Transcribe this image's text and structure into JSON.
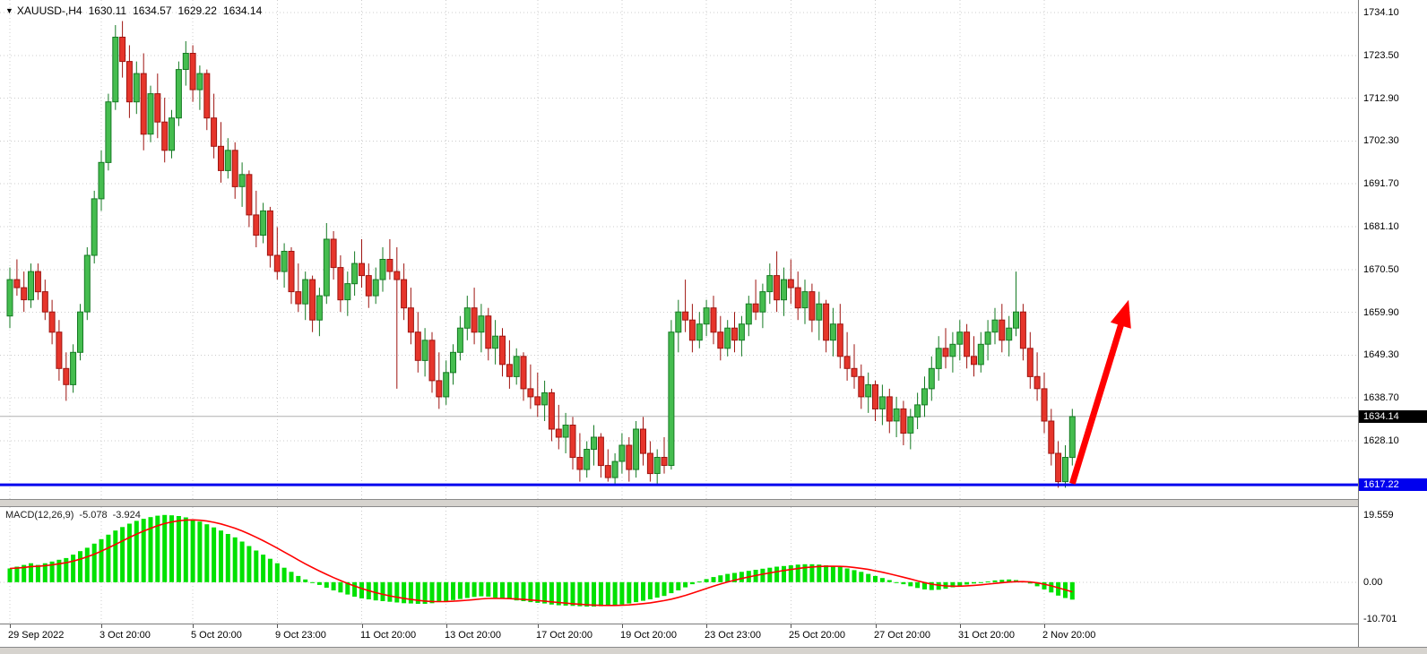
{
  "header": {
    "symbol_period": "XAUUSD-,H4",
    "open": "1630.11",
    "high": "1634.57",
    "low": "1629.22",
    "close": "1634.14"
  },
  "macd_info": {
    "name": "MACD(12,26,9)",
    "macd_value": "-5.078",
    "signal_value": "-3.924"
  },
  "price_axis": {
    "gridlines": [
      "1734.10",
      "1723.50",
      "1712.90",
      "1702.30",
      "1691.70",
      "1681.10",
      "1670.50",
      "1659.90",
      "1649.30",
      "1638.70",
      "1628.10"
    ],
    "current_price": "1634.14",
    "support_price": "1617.22"
  },
  "macd_axis": {
    "labels": [
      {
        "text": "19.559",
        "value": 19.559
      },
      {
        "text": "0.00",
        "value": 0
      },
      {
        "text": "-10.701",
        "value": -10.701
      }
    ]
  },
  "time_axis": {
    "labels": [
      {
        "text": "29 Sep 2022",
        "index": 0
      },
      {
        "text": "3 Oct 20:00",
        "index": 13
      },
      {
        "text": "5 Oct 20:00",
        "index": 26
      },
      {
        "text": "9 Oct 23:00",
        "index": 38
      },
      {
        "text": "11 Oct 20:00",
        "index": 50
      },
      {
        "text": "13 Oct 20:00",
        "index": 62
      },
      {
        "text": "17 Oct 20:00",
        "index": 75
      },
      {
        "text": "19 Oct 20:00",
        "index": 87
      },
      {
        "text": "23 Oct 23:00",
        "index": 99
      },
      {
        "text": "25 Oct 20:00",
        "index": 111
      },
      {
        "text": "27 Oct 20:00",
        "index": 123
      },
      {
        "text": "31 Oct 20:00",
        "index": 135
      },
      {
        "text": "2 Nov 20:00",
        "index": 147
      }
    ]
  },
  "colors": {
    "background": "#ffffff",
    "grid": "#cccccc",
    "bull": "#45bd4f",
    "bull_border": "#157a23",
    "bear": "#e6352b",
    "bear_border": "#9e1410",
    "macd_hist": "#00e100",
    "signal": "#ff0000",
    "support": "#0000ee",
    "arrow": "#ff0000",
    "current_price_line": "#b0b0b0"
  },
  "chart_data": [
    {
      "type": "candlestick",
      "title": "XAUUSD- H4",
      "ylim": [
        1613.7,
        1737.2
      ],
      "current_price": 1634.14,
      "support_price": 1617.22,
      "candles": [
        [
          1659,
          1671,
          1656,
          1668
        ],
        [
          1668,
          1673,
          1664,
          1666
        ],
        [
          1666,
          1670,
          1660,
          1663
        ],
        [
          1663,
          1672,
          1661,
          1670
        ],
        [
          1670,
          1672,
          1663,
          1665
        ],
        [
          1665,
          1668,
          1658,
          1660
        ],
        [
          1660,
          1663,
          1652,
          1655
        ],
        [
          1655,
          1658,
          1643,
          1646
        ],
        [
          1646,
          1650,
          1638,
          1642
        ],
        [
          1642,
          1652,
          1640,
          1650
        ],
        [
          1650,
          1662,
          1648,
          1660
        ],
        [
          1660,
          1676,
          1658,
          1674
        ],
        [
          1674,
          1690,
          1672,
          1688
        ],
        [
          1688,
          1700,
          1685,
          1697
        ],
        [
          1697,
          1714,
          1695,
          1712
        ],
        [
          1712,
          1731,
          1710,
          1728
        ],
        [
          1728,
          1732,
          1718,
          1722
        ],
        [
          1722,
          1726,
          1708,
          1712
        ],
        [
          1712,
          1722,
          1709,
          1719
        ],
        [
          1719,
          1724,
          1700,
          1704
        ],
        [
          1704,
          1716,
          1702,
          1714
        ],
        [
          1714,
          1719,
          1703,
          1707
        ],
        [
          1707,
          1713,
          1697,
          1700
        ],
        [
          1700,
          1710,
          1698,
          1708
        ],
        [
          1708,
          1722,
          1706,
          1720
        ],
        [
          1720,
          1727,
          1716,
          1724
        ],
        [
          1724,
          1726,
          1712,
          1715
        ],
        [
          1715,
          1721,
          1710,
          1719
        ],
        [
          1719,
          1720,
          1705,
          1708
        ],
        [
          1708,
          1714,
          1698,
          1701
        ],
        [
          1701,
          1707,
          1692,
          1695
        ],
        [
          1695,
          1703,
          1693,
          1700
        ],
        [
          1700,
          1702,
          1688,
          1691
        ],
        [
          1691,
          1697,
          1686,
          1694
        ],
        [
          1694,
          1695,
          1681,
          1684
        ],
        [
          1684,
          1690,
          1676,
          1679
        ],
        [
          1679,
          1687,
          1677,
          1685
        ],
        [
          1685,
          1686,
          1671,
          1674
        ],
        [
          1674,
          1681,
          1668,
          1670
        ],
        [
          1670,
          1677,
          1666,
          1675
        ],
        [
          1675,
          1676,
          1662,
          1665
        ],
        [
          1665,
          1672,
          1660,
          1662
        ],
        [
          1662,
          1670,
          1658,
          1668
        ],
        [
          1668,
          1669,
          1655,
          1658
        ],
        [
          1658,
          1666,
          1654,
          1664
        ],
        [
          1664,
          1682,
          1662,
          1678
        ],
        [
          1678,
          1680,
          1668,
          1671
        ],
        [
          1671,
          1674,
          1660,
          1663
        ],
        [
          1663,
          1670,
          1659,
          1667
        ],
        [
          1667,
          1675,
          1664,
          1672
        ],
        [
          1672,
          1678,
          1666,
          1669
        ],
        [
          1669,
          1672,
          1661,
          1664
        ],
        [
          1664,
          1671,
          1662,
          1668
        ],
        [
          1668,
          1676,
          1665,
          1673
        ],
        [
          1673,
          1678,
          1668,
          1670
        ],
        [
          1670,
          1676,
          1641,
          1668
        ],
        [
          1668,
          1672,
          1658,
          1661
        ],
        [
          1661,
          1666,
          1652,
          1655
        ],
        [
          1655,
          1660,
          1645,
          1648
        ],
        [
          1648,
          1656,
          1644,
          1653
        ],
        [
          1653,
          1655,
          1640,
          1643
        ],
        [
          1643,
          1650,
          1636,
          1639
        ],
        [
          1639,
          1648,
          1637,
          1645
        ],
        [
          1645,
          1652,
          1642,
          1650
        ],
        [
          1650,
          1659,
          1648,
          1656
        ],
        [
          1656,
          1664,
          1653,
          1661
        ],
        [
          1661,
          1666,
          1652,
          1655
        ],
        [
          1655,
          1662,
          1650,
          1659
        ],
        [
          1659,
          1661,
          1648,
          1651
        ],
        [
          1651,
          1658,
          1647,
          1654
        ],
        [
          1654,
          1656,
          1644,
          1647
        ],
        [
          1647,
          1653,
          1641,
          1644
        ],
        [
          1644,
          1651,
          1642,
          1649
        ],
        [
          1649,
          1650,
          1638,
          1641
        ],
        [
          1641,
          1647,
          1636,
          1639
        ],
        [
          1639,
          1645,
          1634,
          1637
        ],
        [
          1637,
          1643,
          1633,
          1640
        ],
        [
          1640,
          1641,
          1628,
          1631
        ],
        [
          1631,
          1637,
          1626,
          1629
        ],
        [
          1629,
          1635,
          1625,
          1632
        ],
        [
          1632,
          1634,
          1621,
          1624
        ],
        [
          1624,
          1630,
          1618,
          1621
        ],
        [
          1621,
          1628,
          1619,
          1626
        ],
        [
          1626,
          1632,
          1622,
          1629
        ],
        [
          1629,
          1630,
          1619,
          1622
        ],
        [
          1622,
          1626,
          1618,
          1619
        ],
        [
          1619,
          1625,
          1617.5,
          1623
        ],
        [
          1623,
          1630,
          1620,
          1627
        ],
        [
          1627,
          1629,
          1618,
          1621
        ],
        [
          1621,
          1633,
          1619,
          1631
        ],
        [
          1631,
          1634,
          1622,
          1625
        ],
        [
          1625,
          1628,
          1618,
          1620
        ],
        [
          1620,
          1626,
          1617.5,
          1624
        ],
        [
          1624,
          1629,
          1620,
          1622
        ],
        [
          1622,
          1658,
          1621,
          1655
        ],
        [
          1655,
          1663,
          1650,
          1660
        ],
        [
          1660,
          1668,
          1655,
          1658
        ],
        [
          1658,
          1662,
          1650,
          1653
        ],
        [
          1653,
          1660,
          1651,
          1657
        ],
        [
          1657,
          1663,
          1654,
          1661
        ],
        [
          1661,
          1664,
          1652,
          1655
        ],
        [
          1655,
          1659,
          1648,
          1651
        ],
        [
          1651,
          1658,
          1649,
          1656
        ],
        [
          1656,
          1660,
          1650,
          1653
        ],
        [
          1653,
          1659,
          1649,
          1657
        ],
        [
          1657,
          1664,
          1654,
          1662
        ],
        [
          1662,
          1668,
          1658,
          1660
        ],
        [
          1660,
          1667,
          1656,
          1665
        ],
        [
          1665,
          1672,
          1662,
          1669
        ],
        [
          1669,
          1675,
          1660,
          1663
        ],
        [
          1663,
          1671,
          1659,
          1668
        ],
        [
          1668,
          1673,
          1662,
          1666
        ],
        [
          1666,
          1670,
          1658,
          1661
        ],
        [
          1661,
          1668,
          1657,
          1665
        ],
        [
          1665,
          1667,
          1655,
          1658
        ],
        [
          1658,
          1665,
          1653,
          1662
        ],
        [
          1662,
          1663,
          1650,
          1653
        ],
        [
          1653,
          1661,
          1649,
          1657
        ],
        [
          1657,
          1662,
          1646,
          1649
        ],
        [
          1649,
          1655,
          1643,
          1646
        ],
        [
          1646,
          1652,
          1641,
          1644
        ],
        [
          1644,
          1647,
          1636,
          1639
        ],
        [
          1639,
          1645,
          1635,
          1642
        ],
        [
          1642,
          1643,
          1633,
          1636
        ],
        [
          1636,
          1642,
          1632,
          1639
        ],
        [
          1639,
          1641,
          1630,
          1633
        ],
        [
          1633,
          1639,
          1629,
          1636
        ],
        [
          1636,
          1638,
          1627,
          1630
        ],
        [
          1630,
          1636,
          1626,
          1634
        ],
        [
          1634,
          1640,
          1631,
          1637
        ],
        [
          1637,
          1644,
          1634,
          1641
        ],
        [
          1641,
          1649,
          1638,
          1646
        ],
        [
          1646,
          1654,
          1643,
          1651
        ],
        [
          1651,
          1656,
          1646,
          1649
        ],
        [
          1649,
          1655,
          1645,
          1652
        ],
        [
          1652,
          1658,
          1648,
          1655
        ],
        [
          1655,
          1657,
          1646,
          1649
        ],
        [
          1649,
          1654,
          1644,
          1647
        ],
        [
          1647,
          1655,
          1645,
          1652
        ],
        [
          1652,
          1658,
          1648,
          1655
        ],
        [
          1655,
          1661,
          1652,
          1658
        ],
        [
          1658,
          1662,
          1650,
          1653
        ],
        [
          1653,
          1659,
          1649,
          1656
        ],
        [
          1656,
          1670,
          1654,
          1660
        ],
        [
          1660,
          1662,
          1648,
          1651
        ],
        [
          1651,
          1655,
          1641,
          1644
        ],
        [
          1644,
          1650,
          1638,
          1641
        ],
        [
          1641,
          1645,
          1630,
          1633
        ],
        [
          1633,
          1636,
          1622,
          1625
        ],
        [
          1625,
          1628,
          1616.5,
          1618
        ],
        [
          1618,
          1627,
          1616.5,
          1624
        ],
        [
          1624,
          1636,
          1622,
          1634.1
        ]
      ],
      "arrow": {
        "i1": 151,
        "p1": 1617.5,
        "i2": 159,
        "p2": 1663
      }
    },
    {
      "type": "bar",
      "name": "MACD(12,26,9)",
      "params": [
        12,
        26,
        9
      ],
      "signal_period": 9,
      "ylim": [
        -12.0,
        21.8
      ],
      "macd_current": -5.078,
      "signal_current": -3.924,
      "values": [
        4.0,
        4.5,
        5.0,
        5.5,
        5.0,
        5.5,
        6.0,
        6.5,
        7.0,
        8.0,
        9.0,
        10.0,
        11.2,
        12.5,
        13.8,
        15.0,
        16.0,
        17.0,
        17.8,
        18.4,
        18.9,
        19.3,
        19.5,
        19.4,
        19.2,
        18.8,
        18.3,
        17.6,
        16.8,
        15.9,
        15.0,
        14.0,
        13.0,
        11.8,
        10.5,
        9.2,
        8.0,
        6.8,
        5.5,
        4.2,
        3.0,
        1.8,
        0.8,
        0.0,
        -0.8,
        -1.6,
        -2.4,
        -3.0,
        -3.6,
        -4.2,
        -4.7,
        -5.0,
        -5.3,
        -5.5,
        -5.7,
        -5.9,
        -6.1,
        -6.2,
        -6.3,
        -6.3,
        -6.1,
        -5.8,
        -5.5,
        -5.2,
        -4.9,
        -4.6,
        -4.3,
        -4.1,
        -4.2,
        -4.5,
        -4.8,
        -5.0,
        -5.3,
        -5.5,
        -5.8,
        -6.0,
        -6.2,
        -6.5,
        -6.7,
        -6.8,
        -6.9,
        -7.0,
        -7.1,
        -7.1,
        -7.0,
        -6.9,
        -6.7,
        -6.5,
        -6.2,
        -5.8,
        -5.4,
        -5.0,
        -4.5,
        -4.0,
        -3.2,
        -2.4,
        -1.5,
        -0.6,
        0.2,
        0.9,
        1.5,
        2.0,
        2.4,
        2.7,
        3.0,
        3.3,
        3.6,
        3.9,
        4.2,
        4.5,
        4.7,
        4.9,
        5.1,
        5.2,
        5.2,
        5.1,
        4.9,
        4.7,
        4.4,
        4.0,
        3.5,
        3.0,
        2.4,
        1.8,
        1.2,
        0.6,
        0.0,
        -0.6,
        -1.2,
        -1.7,
        -2.1,
        -2.3,
        -2.2,
        -1.9,
        -1.5,
        -1.1,
        -0.7,
        -0.4,
        -0.1,
        0.2,
        0.5,
        0.7,
        0.8,
        0.6,
        0.2,
        -0.4,
        -1.2,
        -2.1,
        -3.0,
        -3.9,
        -4.6,
        -5.078
      ]
    }
  ]
}
